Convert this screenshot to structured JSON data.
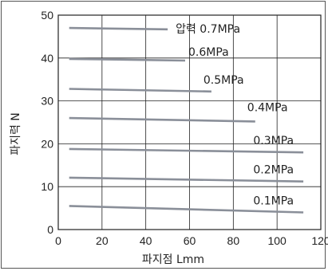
{
  "chart_data": {
    "type": "line",
    "xlabel": "파지점 Lmm",
    "ylabel": "파지력 N",
    "xlim": [
      0,
      120
    ],
    "ylim": [
      0,
      50
    ],
    "x_ticks": [
      0,
      20,
      40,
      60,
      80,
      100,
      120
    ],
    "y_ticks": [
      0,
      10,
      20,
      30,
      40,
      50
    ],
    "grid": true,
    "line_color": "#8a8f99",
    "grid_color": "#222222",
    "series": [
      {
        "name": "압력 0.7MPa",
        "x": [
          5,
          50
        ],
        "y": [
          47.0,
          46.7
        ]
      },
      {
        "name": "0.6MPa",
        "x": [
          5,
          58
        ],
        "y": [
          39.8,
          39.4
        ]
      },
      {
        "name": "0.5MPa",
        "x": [
          5,
          70
        ],
        "y": [
          32.8,
          32.2
        ]
      },
      {
        "name": "0.4MPa",
        "x": [
          5,
          90
        ],
        "y": [
          26.0,
          25.2
        ]
      },
      {
        "name": "0.3MPa",
        "x": [
          5,
          112
        ],
        "y": [
          18.8,
          18.0
        ]
      },
      {
        "name": "0.2MPa",
        "x": [
          5,
          112
        ],
        "y": [
          12.1,
          11.2
        ]
      },
      {
        "name": "0.1MPa",
        "x": [
          5,
          112
        ],
        "y": [
          5.5,
          4.0
        ]
      }
    ]
  }
}
